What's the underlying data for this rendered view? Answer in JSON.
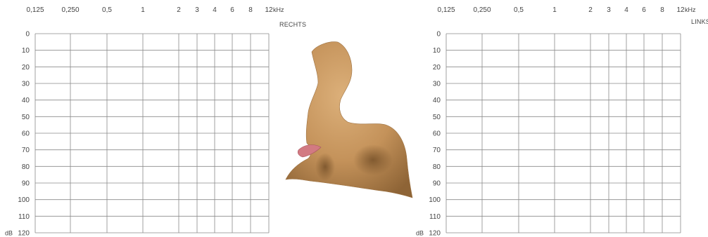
{
  "chart_data": [
    {
      "type": "line",
      "side_label": "RECHTS",
      "x_unit": "kHz",
      "y_unit": "dB",
      "x_ticks": [
        "0,125",
        "0,250",
        "0,5",
        "1",
        "2",
        "3",
        "4",
        "6",
        "8",
        "12"
      ],
      "y_ticks": [
        "0",
        "10",
        "20",
        "30",
        "40",
        "50",
        "60",
        "70",
        "80",
        "90",
        "100",
        "110",
        "120"
      ],
      "ylim": [
        0,
        120
      ],
      "y_inverted": true,
      "grid": true,
      "series": []
    },
    {
      "type": "line",
      "side_label": "LINKS",
      "x_unit": "kHz",
      "y_unit": "dB",
      "x_ticks": [
        "0,125",
        "0,250",
        "0,5",
        "1",
        "2",
        "3",
        "4",
        "6",
        "8",
        "12"
      ],
      "y_ticks": [
        "0",
        "10",
        "20",
        "30",
        "40",
        "50",
        "60",
        "70",
        "80",
        "90",
        "100",
        "110",
        "120"
      ],
      "ylim": [
        0,
        120
      ],
      "y_inverted": true,
      "grid": true,
      "series": []
    }
  ],
  "illustration": {
    "name": "ear-impression",
    "color": "#c8995f",
    "accent_color": "#d27a82"
  },
  "colors": {
    "grid": "#8a8a8a",
    "text": "#444444"
  }
}
